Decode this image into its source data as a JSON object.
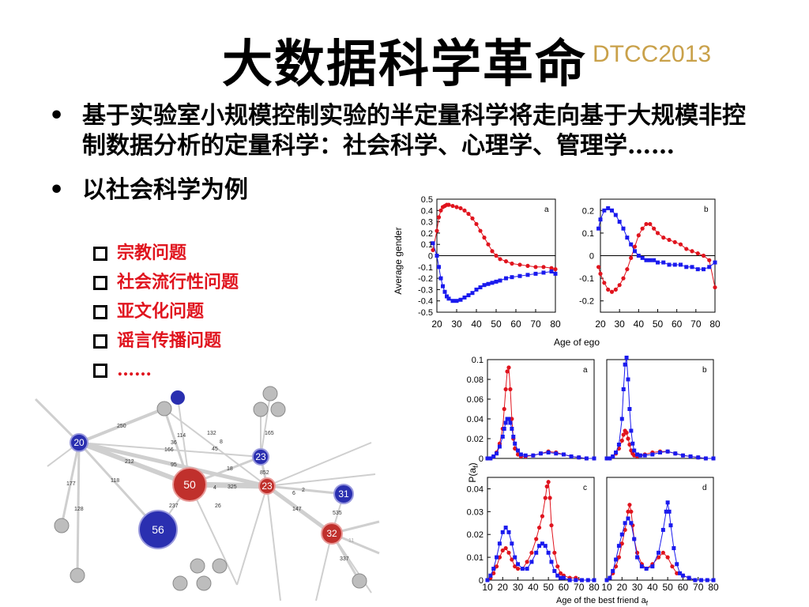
{
  "slide": {
    "title": "大数据科学革命",
    "tag": "DTCC2013",
    "bullets": [
      {
        "marker": "•",
        "text": "基于实验室小规模控制实验的半定量科学将走向基于大规模非控制数据分析的定量科学：社会科学、心理学、管理学……"
      },
      {
        "marker": "•",
        "text": "以社会科学为例"
      }
    ],
    "sub_items": [
      "宗教问题",
      "社会流行性问题",
      "亚文化问题",
      "谣言传播问题",
      "……"
    ]
  },
  "colors": {
    "red": "#e0141e",
    "blue": "#1a1aee",
    "gold": "#c9a14a",
    "node_red": "#c0302c",
    "node_blue": "#2a2fb0"
  },
  "network": {
    "nodes": [
      {
        "id": "n20",
        "label": "20",
        "color": "blue"
      },
      {
        "id": "n50",
        "label": "50",
        "color": "red"
      },
      {
        "id": "n56",
        "label": "56",
        "color": "blue"
      },
      {
        "id": "n23a",
        "label": "23",
        "color": "blue"
      },
      {
        "id": "n23b",
        "label": "23",
        "color": "red"
      },
      {
        "id": "n31",
        "label": "31",
        "color": "blue"
      },
      {
        "id": "n32",
        "label": "32",
        "color": "red"
      }
    ],
    "edge_labels": [
      "250",
      "114",
      "36",
      "166",
      "132",
      "8",
      "45",
      "165",
      "212",
      "95",
      "18",
      "852",
      "118",
      "177",
      "4",
      "325",
      "6",
      "2",
      "237",
      "26",
      "147",
      "535",
      "128",
      "11",
      "337"
    ]
  },
  "chart_data": [
    {
      "id": "top-a",
      "type": "scatter",
      "panel_label": "a",
      "ylabel": "Average gender",
      "xlabel": "Age of ego",
      "xlim": [
        20,
        80
      ],
      "ylim": [
        -0.5,
        0.5
      ],
      "xticks": [
        "20",
        "30",
        "40",
        "50",
        "60",
        "70",
        "80"
      ],
      "yticks": [
        "0.5",
        "0.4",
        "0.3",
        "0.2",
        "0.1",
        "0",
        "-0.1",
        "-0.2",
        "-0.3",
        "-0.4",
        "-0.5"
      ],
      "series": [
        {
          "color": "red",
          "marker": "circle",
          "x": [
            18,
            20,
            21,
            22,
            23,
            24,
            25,
            26,
            28,
            30,
            32,
            34,
            36,
            38,
            40,
            42,
            44,
            46,
            48,
            50,
            52,
            55,
            58,
            62,
            66,
            70,
            74,
            78,
            80
          ],
          "y": [
            0.05,
            0.22,
            0.34,
            0.4,
            0.43,
            0.44,
            0.45,
            0.45,
            0.44,
            0.43,
            0.42,
            0.4,
            0.37,
            0.33,
            0.28,
            0.22,
            0.16,
            0.1,
            0.04,
            0,
            -0.03,
            -0.05,
            -0.07,
            -0.08,
            -0.09,
            -0.1,
            -0.1,
            -0.11,
            -0.12
          ]
        },
        {
          "color": "blue",
          "marker": "square",
          "x": [
            18,
            20,
            21,
            22,
            23,
            24,
            25,
            26,
            28,
            30,
            32,
            34,
            36,
            38,
            40,
            42,
            44,
            46,
            48,
            50,
            52,
            55,
            58,
            62,
            66,
            70,
            74,
            78,
            80
          ],
          "y": [
            0.11,
            0,
            -0.1,
            -0.2,
            -0.27,
            -0.32,
            -0.36,
            -0.38,
            -0.4,
            -0.4,
            -0.39,
            -0.37,
            -0.35,
            -0.33,
            -0.3,
            -0.28,
            -0.26,
            -0.25,
            -0.24,
            -0.23,
            -0.22,
            -0.2,
            -0.19,
            -0.18,
            -0.17,
            -0.16,
            -0.15,
            -0.14,
            -0.16
          ]
        }
      ]
    },
    {
      "id": "top-b",
      "type": "scatter",
      "panel_label": "b",
      "xlim": [
        20,
        80
      ],
      "ylim": [
        -0.25,
        0.25
      ],
      "xticks": [
        "20",
        "30",
        "40",
        "50",
        "60",
        "70",
        "80"
      ],
      "yticks": [
        "0.2",
        "0.1",
        "0",
        "-0.1",
        "-0.2"
      ],
      "series": [
        {
          "color": "red",
          "marker": "circle",
          "x": [
            19,
            20,
            22,
            24,
            26,
            28,
            30,
            32,
            34,
            36,
            38,
            40,
            42,
            44,
            46,
            48,
            50,
            53,
            56,
            59,
            62,
            65,
            68,
            71,
            74,
            77,
            80
          ],
          "y": [
            -0.05,
            -0.08,
            -0.12,
            -0.15,
            -0.16,
            -0.15,
            -0.13,
            -0.1,
            -0.06,
            -0.01,
            0.04,
            0.09,
            0.12,
            0.14,
            0.14,
            0.12,
            0.1,
            0.08,
            0.07,
            0.06,
            0.05,
            0.03,
            0.02,
            0.01,
            0.0,
            -0.02,
            -0.14
          ]
        },
        {
          "color": "blue",
          "marker": "square",
          "x": [
            19,
            20,
            22,
            24,
            26,
            28,
            30,
            32,
            34,
            36,
            38,
            40,
            42,
            44,
            46,
            48,
            50,
            53,
            56,
            59,
            62,
            65,
            68,
            71,
            74,
            77,
            80
          ],
          "y": [
            0.12,
            0.16,
            0.2,
            0.21,
            0.2,
            0.18,
            0.15,
            0.12,
            0.08,
            0.05,
            0.02,
            0.0,
            -0.01,
            -0.02,
            -0.02,
            -0.02,
            -0.03,
            -0.03,
            -0.04,
            -0.04,
            -0.04,
            -0.05,
            -0.05,
            -0.06,
            -0.06,
            -0.05,
            -0.03
          ]
        }
      ]
    },
    {
      "id": "bot-a",
      "type": "line",
      "panel_label": "a",
      "ylabel": "P(a_f)",
      "xlim": [
        10,
        80
      ],
      "ylim": [
        0,
        0.1
      ],
      "yticks": [
        "0.1",
        "0.08",
        "0.06",
        "0.04",
        "0.02",
        "0"
      ],
      "series": [
        {
          "color": "red",
          "marker": "circle",
          "x": [
            10,
            12,
            14,
            16,
            18,
            20,
            21,
            22,
            23,
            24,
            25,
            26,
            27,
            28,
            30,
            32,
            35,
            40,
            45,
            50,
            55,
            60,
            65,
            70,
            75,
            80
          ],
          "y": [
            0,
            0,
            0.002,
            0.006,
            0.015,
            0.03,
            0.05,
            0.07,
            0.088,
            0.092,
            0.07,
            0.04,
            0.02,
            0.01,
            0.004,
            0.002,
            0.002,
            0.003,
            0.005,
            0.007,
            0.006,
            0.004,
            0.002,
            0.001,
            0,
            0
          ]
        },
        {
          "color": "blue",
          "marker": "square",
          "x": [
            10,
            12,
            14,
            16,
            18,
            20,
            21,
            22,
            23,
            24,
            25,
            26,
            27,
            28,
            30,
            32,
            35,
            40,
            45,
            50,
            55,
            60,
            65,
            70,
            75,
            80
          ],
          "y": [
            0,
            0,
            0.002,
            0.005,
            0.012,
            0.022,
            0.03,
            0.036,
            0.04,
            0.04,
            0.036,
            0.03,
            0.022,
            0.015,
            0.008,
            0.004,
            0.003,
            0.003,
            0.005,
            0.006,
            0.005,
            0.004,
            0.002,
            0.001,
            0,
            0
          ]
        }
      ]
    },
    {
      "id": "bot-b",
      "type": "line",
      "panel_label": "b",
      "xlim": [
        10,
        80
      ],
      "ylim": [
        0,
        0.1
      ],
      "series": [
        {
          "color": "red",
          "marker": "circle",
          "x": [
            10,
            12,
            14,
            16,
            18,
            20,
            21,
            22,
            23,
            24,
            25,
            26,
            27,
            28,
            30,
            32,
            35,
            40,
            45,
            50,
            55,
            60,
            65,
            70,
            75,
            80
          ],
          "y": [
            0,
            0,
            0.002,
            0.005,
            0.01,
            0.018,
            0.024,
            0.028,
            0.026,
            0.02,
            0.014,
            0.008,
            0.005,
            0.003,
            0.002,
            0.003,
            0.004,
            0.006,
            0.007,
            0.007,
            0.005,
            0.003,
            0.002,
            0.001,
            0,
            0
          ]
        },
        {
          "color": "blue",
          "marker": "square",
          "x": [
            10,
            12,
            14,
            16,
            18,
            20,
            21,
            22,
            23,
            24,
            25,
            26,
            27,
            28,
            30,
            32,
            35,
            40,
            45,
            50,
            55,
            60,
            65,
            70,
            75,
            80
          ],
          "y": [
            0,
            0,
            0.002,
            0.006,
            0.014,
            0.04,
            0.07,
            0.095,
            0.102,
            0.08,
            0.05,
            0.028,
            0.015,
            0.008,
            0.004,
            0.003,
            0.003,
            0.004,
            0.006,
            0.007,
            0.005,
            0.003,
            0.002,
            0.001,
            0,
            0
          ]
        }
      ]
    },
    {
      "id": "bot-c",
      "type": "line",
      "panel_label": "c",
      "xlim": [
        10,
        80
      ],
      "ylim": [
        0,
        0.045
      ],
      "xticks": [
        "10",
        "20",
        "30",
        "40",
        "50",
        "60",
        "70",
        "80"
      ],
      "yticks": [
        "0.04",
        "0.03",
        "0.02",
        "0.01",
        "0"
      ],
      "series": [
        {
          "color": "red",
          "marker": "circle",
          "x": [
            10,
            12,
            14,
            16,
            18,
            20,
            22,
            24,
            26,
            28,
            30,
            33,
            36,
            39,
            42,
            44,
            46,
            48,
            49,
            50,
            51,
            52,
            54,
            56,
            58,
            60,
            64,
            68,
            72,
            76,
            80
          ],
          "y": [
            0,
            0.001,
            0.003,
            0.006,
            0.01,
            0.013,
            0.014,
            0.012,
            0.009,
            0.006,
            0.005,
            0.005,
            0.008,
            0.012,
            0.018,
            0.023,
            0.028,
            0.036,
            0.041,
            0.043,
            0.036,
            0.024,
            0.012,
            0.006,
            0.003,
            0.002,
            0.001,
            0.001,
            0,
            0,
            0
          ]
        },
        {
          "color": "blue",
          "marker": "square",
          "x": [
            10,
            12,
            14,
            16,
            18,
            20,
            22,
            24,
            26,
            28,
            30,
            33,
            36,
            39,
            42,
            44,
            46,
            48,
            50,
            52,
            54,
            56,
            58,
            60,
            64,
            68,
            72,
            76,
            80
          ],
          "y": [
            0,
            0.002,
            0.005,
            0.01,
            0.016,
            0.021,
            0.023,
            0.021,
            0.016,
            0.01,
            0.007,
            0.005,
            0.005,
            0.008,
            0.012,
            0.015,
            0.016,
            0.015,
            0.012,
            0.008,
            0.004,
            0.002,
            0.001,
            0.001,
            0,
            0,
            0,
            0,
            0
          ]
        }
      ]
    },
    {
      "id": "bot-d",
      "type": "line",
      "panel_label": "d",
      "xlim": [
        10,
        80
      ],
      "ylim": [
        0,
        0.045
      ],
      "xticks": [
        "10",
        "20",
        "30",
        "40",
        "50",
        "60",
        "70",
        "80"
      ],
      "series": [
        {
          "color": "red",
          "marker": "circle",
          "x": [
            10,
            12,
            14,
            16,
            18,
            20,
            22,
            24,
            25,
            26,
            27,
            28,
            30,
            33,
            36,
            40,
            44,
            47,
            50,
            53,
            56,
            60,
            64,
            68,
            72,
            76,
            80
          ],
          "y": [
            0,
            0.001,
            0.003,
            0.006,
            0.01,
            0.016,
            0.022,
            0.03,
            0.033,
            0.03,
            0.024,
            0.018,
            0.012,
            0.007,
            0.005,
            0.007,
            0.01,
            0.012,
            0.01,
            0.006,
            0.003,
            0.002,
            0.001,
            0,
            0,
            0,
            0
          ]
        },
        {
          "color": "blue",
          "marker": "square",
          "x": [
            10,
            12,
            14,
            16,
            18,
            20,
            22,
            24,
            26,
            28,
            30,
            33,
            36,
            40,
            44,
            47,
            49,
            50,
            51,
            52,
            54,
            56,
            58,
            60,
            64,
            68,
            72,
            76,
            80
          ],
          "y": [
            0,
            0.001,
            0.004,
            0.009,
            0.015,
            0.02,
            0.025,
            0.027,
            0.025,
            0.018,
            0.01,
            0.006,
            0.005,
            0.006,
            0.012,
            0.022,
            0.03,
            0.034,
            0.03,
            0.024,
            0.014,
            0.007,
            0.003,
            0.002,
            0.001,
            0,
            0,
            0,
            0
          ]
        }
      ]
    }
  ],
  "chart_text": {
    "top_ylabel": "Average gender",
    "top_xlabel": "Age of ego",
    "bot_ylabel": "P(a",
    "bot_ylabel_sub": "f",
    "bot_xlabel": "Age of the best friend a",
    "bot_xlabel_sub": "f"
  }
}
